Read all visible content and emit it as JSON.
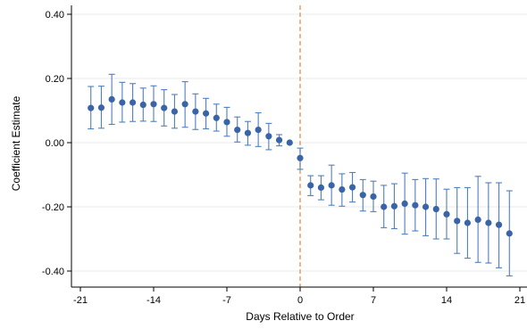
{
  "chart_data": {
    "type": "scatter",
    "xlabel": "Days Relative to Order",
    "ylabel": "Coefficient Estimate",
    "xlim": [
      -21,
      21
    ],
    "ylim": [
      -0.43,
      0.42
    ],
    "x_ticks": [
      "-21",
      "-14",
      "-7",
      "0",
      "7",
      "14",
      "21"
    ],
    "y_ticks": [
      "0.40",
      "0.20",
      "0.00",
      "-0.20",
      "-0.40"
    ],
    "grid": "horizontal",
    "reference_line": {
      "axis": "x",
      "value": 0,
      "style": "dashed",
      "color": "#e8914a"
    },
    "colors": {
      "point": "#3a64a8",
      "errorbar": "#4f7fbf",
      "grid": "#eaeaea"
    },
    "series": [
      {
        "x": [
          -20,
          -19,
          -18,
          -17,
          -16,
          -15,
          -14,
          -13,
          -12,
          -11,
          -10,
          -9,
          -8,
          -7,
          -6,
          -5,
          -4,
          -3,
          -2,
          -1,
          0,
          1,
          2,
          3,
          4,
          5,
          6,
          7,
          8,
          9,
          10,
          11,
          12,
          13,
          14,
          15,
          16,
          17,
          18,
          19,
          20
        ],
        "y": [
          0.108,
          0.109,
          0.135,
          0.125,
          0.125,
          0.118,
          0.12,
          0.108,
          0.097,
          0.12,
          0.097,
          0.091,
          0.077,
          0.064,
          0.04,
          0.03,
          0.04,
          0.02,
          0.008,
          0.0,
          -0.048,
          -0.133,
          -0.14,
          -0.133,
          -0.146,
          -0.139,
          -0.163,
          -0.168,
          -0.2,
          -0.198,
          -0.19,
          -0.195,
          -0.2,
          -0.207,
          -0.223,
          -0.244,
          -0.25,
          -0.24,
          -0.25,
          -0.256,
          -0.283
        ],
        "ci_low": [
          0.043,
          0.045,
          0.057,
          0.064,
          0.066,
          0.067,
          0.066,
          0.052,
          0.045,
          0.048,
          0.041,
          0.043,
          0.036,
          0.02,
          0.002,
          -0.008,
          -0.012,
          -0.022,
          -0.01,
          0.0,
          -0.083,
          -0.165,
          -0.178,
          -0.195,
          -0.198,
          -0.185,
          -0.213,
          -0.215,
          -0.265,
          -0.268,
          -0.285,
          -0.275,
          -0.29,
          -0.3,
          -0.3,
          -0.345,
          -0.36,
          -0.373,
          -0.375,
          -0.39,
          -0.415
        ],
        "ci_high": [
          0.175,
          0.176,
          0.213,
          0.188,
          0.184,
          0.17,
          0.177,
          0.165,
          0.15,
          0.19,
          0.152,
          0.138,
          0.12,
          0.11,
          0.08,
          0.066,
          0.093,
          0.06,
          0.025,
          0.0,
          -0.017,
          -0.103,
          -0.103,
          -0.07,
          -0.097,
          -0.093,
          -0.115,
          -0.12,
          -0.133,
          -0.128,
          -0.095,
          -0.115,
          -0.112,
          -0.113,
          -0.145,
          -0.14,
          -0.14,
          -0.105,
          -0.125,
          -0.125,
          -0.15
        ]
      }
    ]
  }
}
